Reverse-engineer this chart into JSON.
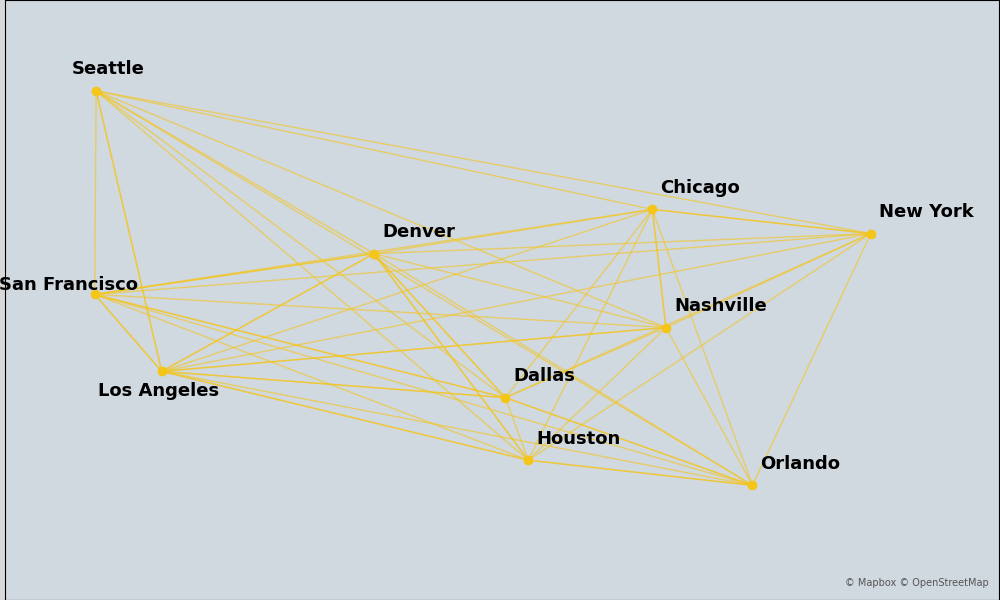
{
  "cities": {
    "Seattle": {
      "lon": -122.33,
      "lat": 47.61
    },
    "San Francisco": {
      "lon": -122.42,
      "lat": 37.77
    },
    "Los Angeles": {
      "lon": -118.24,
      "lat": 34.05
    },
    "Denver": {
      "lon": -104.99,
      "lat": 39.74
    },
    "Dallas": {
      "lon": -96.8,
      "lat": 32.78
    },
    "Houston": {
      "lon": -95.37,
      "lat": 29.76
    },
    "Chicago": {
      "lon": -87.63,
      "lat": 41.88
    },
    "Nashville": {
      "lon": -86.78,
      "lat": 36.17
    },
    "Orlando": {
      "lon": -81.38,
      "lat": 28.54
    },
    "New York": {
      "lon": -74.0,
      "lat": 40.71
    }
  },
  "routes": [
    [
      "Seattle",
      "San Francisco"
    ],
    [
      "Seattle",
      "Los Angeles"
    ],
    [
      "Seattle",
      "Denver"
    ],
    [
      "Seattle",
      "Dallas"
    ],
    [
      "Seattle",
      "Houston"
    ],
    [
      "Seattle",
      "Chicago"
    ],
    [
      "Seattle",
      "Nashville"
    ],
    [
      "Seattle",
      "Orlando"
    ],
    [
      "Seattle",
      "New York"
    ],
    [
      "San Francisco",
      "Los Angeles"
    ],
    [
      "San Francisco",
      "Denver"
    ],
    [
      "San Francisco",
      "Dallas"
    ],
    [
      "San Francisco",
      "Houston"
    ],
    [
      "San Francisco",
      "Chicago"
    ],
    [
      "San Francisco",
      "Nashville"
    ],
    [
      "San Francisco",
      "Orlando"
    ],
    [
      "San Francisco",
      "New York"
    ],
    [
      "Los Angeles",
      "Denver"
    ],
    [
      "Los Angeles",
      "Dallas"
    ],
    [
      "Los Angeles",
      "Houston"
    ],
    [
      "Los Angeles",
      "Chicago"
    ],
    [
      "Los Angeles",
      "Nashville"
    ],
    [
      "Los Angeles",
      "Orlando"
    ],
    [
      "Los Angeles",
      "New York"
    ],
    [
      "Denver",
      "Dallas"
    ],
    [
      "Denver",
      "Houston"
    ],
    [
      "Denver",
      "Chicago"
    ],
    [
      "Denver",
      "Nashville"
    ],
    [
      "Denver",
      "Orlando"
    ],
    [
      "Denver",
      "New York"
    ],
    [
      "Dallas",
      "Houston"
    ],
    [
      "Dallas",
      "Chicago"
    ],
    [
      "Dallas",
      "Nashville"
    ],
    [
      "Dallas",
      "Orlando"
    ],
    [
      "Dallas",
      "New York"
    ],
    [
      "Houston",
      "Chicago"
    ],
    [
      "Houston",
      "Nashville"
    ],
    [
      "Houston",
      "Orlando"
    ],
    [
      "Houston",
      "New York"
    ],
    [
      "Chicago",
      "Nashville"
    ],
    [
      "Chicago",
      "Orlando"
    ],
    [
      "Chicago",
      "New York"
    ],
    [
      "Nashville",
      "Orlando"
    ],
    [
      "Nashville",
      "New York"
    ],
    [
      "Orlando",
      "New York"
    ],
    [
      "Seattle",
      "Los Angeles"
    ],
    [
      "San Francisco",
      "Denver"
    ],
    [
      "Los Angeles",
      "Houston"
    ],
    [
      "Los Angeles",
      "Dallas"
    ],
    [
      "Denver",
      "Dallas"
    ],
    [
      "Houston",
      "Orlando"
    ],
    [
      "Dallas",
      "Orlando"
    ],
    [
      "Nashville",
      "Chicago"
    ],
    [
      "Chicago",
      "New York"
    ],
    [
      "San Francisco",
      "Los Angeles"
    ],
    [
      "Los Angeles",
      "Denver"
    ],
    [
      "Denver",
      "Houston"
    ],
    [
      "Los Angeles",
      "Nashville"
    ],
    [
      "San Francisco",
      "Dallas"
    ]
  ],
  "line_color": "#F5C518",
  "line_alpha": 0.6,
  "line_width": 1.0,
  "bg_color": "#d9d9d9",
  "land_color": "#f0f0f0",
  "water_color": "#d4dde8",
  "border_color": "#bbbbbb",
  "state_color": "#dddddd",
  "xlim": [
    -128,
    -66
  ],
  "ylim": [
    23,
    52
  ],
  "city_dot_color": "#F5C518",
  "city_dot_size": 6,
  "label_fontsize": 13,
  "label_fontweight": "bold"
}
